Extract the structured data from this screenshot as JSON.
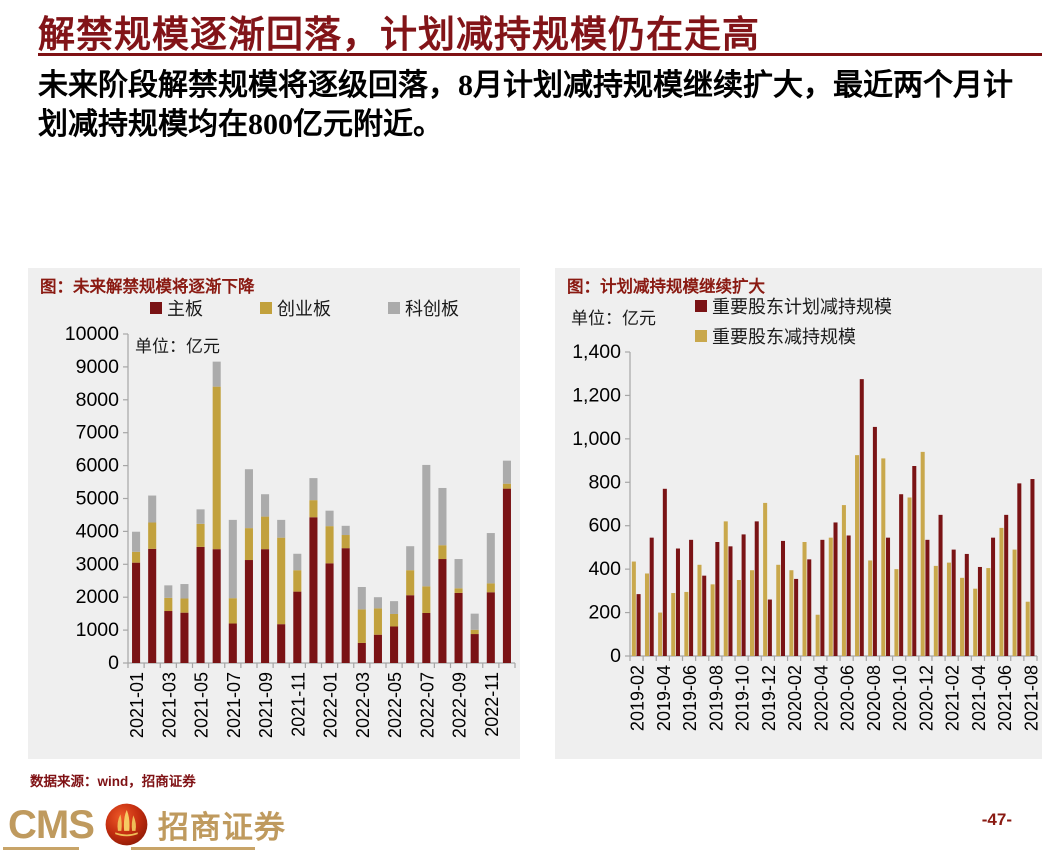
{
  "page": {
    "title": "解禁规模逐渐回落，计划减持规模仍在走高",
    "subtitle": "未来阶段解禁规模将逐级回落，8月计划减持规模继续扩大，最近两个月计划减持规模均在800亿元附近。",
    "source_note": "数据来源：wind，招商证券",
    "page_number": "-47-",
    "logo": {
      "cms_text": "CMS",
      "company_text": "招商证券"
    },
    "colors": {
      "accent_red": "#821418",
      "bar_red": "#7a1315",
      "bar_gold": "#c2a13d",
      "bar_gray": "#ababab",
      "panel_bg": "#efefef",
      "logo_gold": "#bf9a5e"
    }
  },
  "chart_data": [
    {
      "type": "bar",
      "stacked": true,
      "title": "图：未来解禁规模将逐渐下降",
      "unit_label": "单位：亿元",
      "legend_position": "top",
      "grid": false,
      "ylim": [
        0,
        10000
      ],
      "ytick_step": 1000,
      "ytick_labels": [
        "10000",
        "9000",
        "8000",
        "7000",
        "6000",
        "5000",
        "4000",
        "3000",
        "2000",
        "1000",
        "0"
      ],
      "xtick_labels": [
        "2021-01",
        "2021-03",
        "2021-05",
        "2021-07",
        "2021-09",
        "2021-11",
        "2022-01",
        "2022-03",
        "2022-05",
        "2022-07",
        "2022-09",
        "2022-11"
      ],
      "tick_label_every": 2,
      "categories": [
        "2021-01",
        "2021-02",
        "2021-03",
        "2021-04",
        "2021-05",
        "2021-06",
        "2021-07",
        "2021-08",
        "2021-09",
        "2021-10",
        "2021-11",
        "2021-12",
        "2022-01",
        "2022-02",
        "2022-03",
        "2022-04",
        "2022-05",
        "2022-06",
        "2022-07",
        "2022-08",
        "2022-09",
        "2022-10",
        "2022-11",
        "2022-12"
      ],
      "series": [
        {
          "name": "主板",
          "color": "#7a1315",
          "values": [
            3050,
            3470,
            1580,
            1530,
            3530,
            3460,
            1200,
            3130,
            3460,
            1180,
            2170,
            4430,
            3030,
            3490,
            610,
            860,
            1110,
            2060,
            1520,
            3160,
            2130,
            880,
            2150,
            5300
          ]
        },
        {
          "name": "创业板",
          "color": "#c2a13d",
          "values": [
            330,
            800,
            400,
            430,
            700,
            4940,
            770,
            970,
            990,
            2630,
            650,
            520,
            1130,
            400,
            1020,
            800,
            380,
            760,
            810,
            420,
            140,
            130,
            270,
            150
          ]
        },
        {
          "name": "科创板",
          "color": "#ababab",
          "values": [
            610,
            820,
            380,
            440,
            440,
            760,
            2380,
            1790,
            680,
            540,
            500,
            670,
            470,
            280,
            680,
            340,
            390,
            730,
            3690,
            1740,
            890,
            490,
            1530,
            700
          ]
        }
      ]
    },
    {
      "type": "bar",
      "stacked": false,
      "title": "图：计划减持规模继续扩大",
      "unit_label": "单位：亿元",
      "legend_position": "top-right",
      "grid": false,
      "ylim": [
        0,
        1400
      ],
      "ytick_step": 200,
      "ytick_labels": [
        "1,400",
        "1,200",
        "1,000",
        "800",
        "600",
        "400",
        "200",
        "0"
      ],
      "xtick_labels": [
        "2019-02",
        "2019-04",
        "2019-06",
        "2019-08",
        "2019-10",
        "2019-12",
        "2020-02",
        "2020-04",
        "2020-06",
        "2020-08",
        "2020-10",
        "2020-12",
        "2021-02",
        "2021-04",
        "2021-06",
        "2021-08"
      ],
      "tick_label_every": 2,
      "draw_order": [
        1,
        0
      ],
      "categories": [
        "2019-02",
        "2019-03",
        "2019-04",
        "2019-05",
        "2019-06",
        "2019-07",
        "2019-08",
        "2019-09",
        "2019-10",
        "2019-11",
        "2019-12",
        "2020-01",
        "2020-02",
        "2020-03",
        "2020-04",
        "2020-05",
        "2020-06",
        "2020-07",
        "2020-08",
        "2020-09",
        "2020-10",
        "2020-11",
        "2020-12",
        "2021-01",
        "2021-02",
        "2021-03",
        "2021-04",
        "2021-05",
        "2021-06",
        "2021-07",
        "2021-08"
      ],
      "series": [
        {
          "name": "重要股东计划减持规模",
          "color": "#7a1315",
          "values": [
            285,
            545,
            770,
            495,
            535,
            370,
            525,
            505,
            560,
            620,
            260,
            530,
            355,
            445,
            535,
            615,
            555,
            1275,
            1055,
            545,
            745,
            875,
            535,
            650,
            490,
            470,
            410,
            545,
            650,
            795,
            815
          ]
        },
        {
          "name": "重要股东减持规模",
          "color": "#c9a84c",
          "values": [
            435,
            380,
            200,
            290,
            295,
            420,
            330,
            620,
            350,
            395,
            705,
            420,
            395,
            525,
            190,
            545,
            695,
            925,
            440,
            910,
            400,
            730,
            940,
            415,
            430,
            360,
            310,
            405,
            590,
            490,
            250
          ]
        }
      ]
    }
  ]
}
